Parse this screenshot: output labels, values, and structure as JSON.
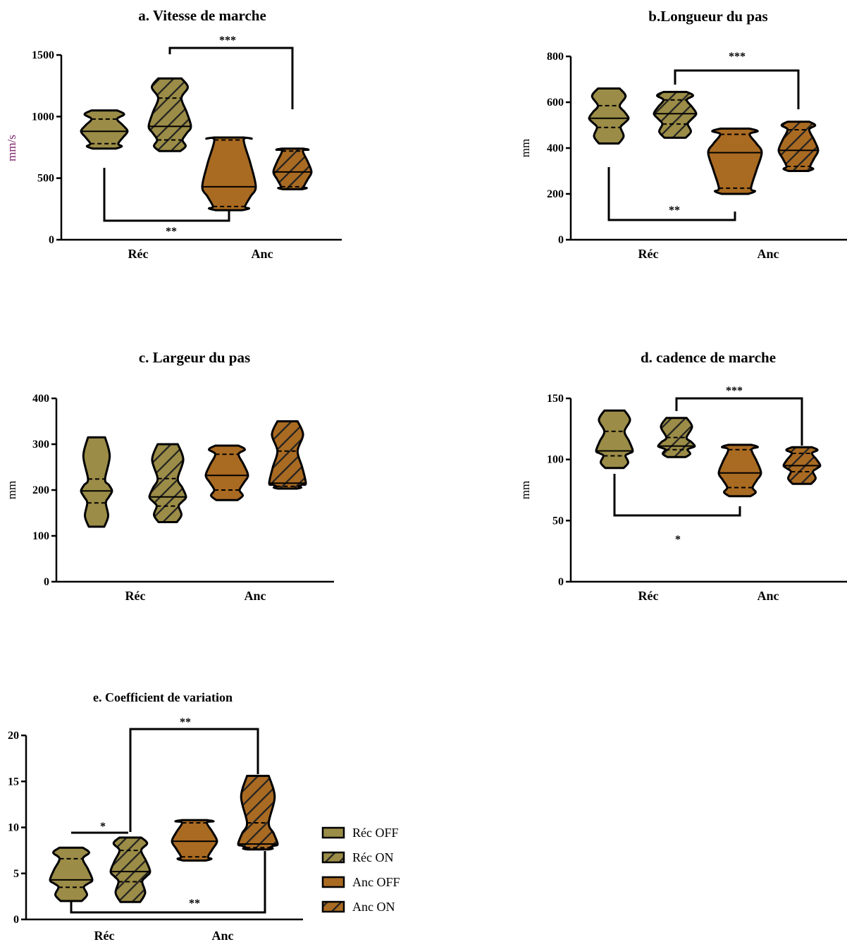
{
  "colors": {
    "rec": "#9B8C47",
    "anc": "#A96A22",
    "stroke": "#000000",
    "ylabel_a": "#7B1F68"
  },
  "legend": [
    {
      "label": "Réc OFF",
      "color": "#9B8C47",
      "hatched": false
    },
    {
      "label": "Réc ON",
      "color": "#9B8C47",
      "hatched": true
    },
    {
      "label": "Anc OFF",
      "color": "#A96A22",
      "hatched": false
    },
    {
      "label": "Anc ON",
      "color": "#A96A22",
      "hatched": true
    }
  ],
  "chart_data": [
    {
      "id": "a",
      "type": "violin",
      "title": "a. Vitesse de marche",
      "ylabel": "mm/s",
      "ylim": [
        0,
        1500
      ],
      "yticks": [
        "0",
        "500",
        "1000",
        "1500"
      ],
      "categories": [
        "Réc",
        "Anc"
      ],
      "series": [
        {
          "name": "Réc OFF",
          "group": "Réc",
          "min": 740,
          "max": 1050,
          "median": 880,
          "q1": 780,
          "q3": 980
        },
        {
          "name": "Réc ON",
          "group": "Réc",
          "min": 720,
          "max": 1310,
          "median": 920,
          "q1": 810,
          "q3": 1150
        },
        {
          "name": "Anc OFF",
          "group": "Anc",
          "min": 240,
          "max": 830,
          "median": 430,
          "q1": 270,
          "q3": 810
        },
        {
          "name": "Anc ON",
          "group": "Anc",
          "min": 410,
          "max": 740,
          "median": 550,
          "q1": 430,
          "q3": 720
        }
      ],
      "significance": [
        "***",
        "**"
      ]
    },
    {
      "id": "b",
      "type": "violin",
      "title": "b.Longueur du pas",
      "ylabel": "mm",
      "ylim": [
        0,
        800
      ],
      "yticks": [
        "0",
        "200",
        "400",
        "600",
        "800"
      ],
      "categories": [
        "Réc",
        "Anc"
      ],
      "series": [
        {
          "name": "Réc OFF",
          "group": "Réc",
          "min": 420,
          "max": 660,
          "median": 530,
          "q1": 490,
          "q3": 585
        },
        {
          "name": "Réc ON",
          "group": "Réc",
          "min": 445,
          "max": 645,
          "median": 550,
          "q1": 505,
          "q3": 610
        },
        {
          "name": "Anc OFF",
          "group": "Anc",
          "min": 200,
          "max": 485,
          "median": 380,
          "q1": 225,
          "q3": 460
        },
        {
          "name": "Anc ON",
          "group": "Anc",
          "min": 300,
          "max": 515,
          "median": 390,
          "q1": 320,
          "q3": 480
        }
      ],
      "significance": [
        "***",
        "**"
      ]
    },
    {
      "id": "c",
      "type": "violin",
      "title": "c. Largeur du pas",
      "ylabel": "mm",
      "ylim": [
        0,
        400
      ],
      "yticks": [
        "0",
        "100",
        "200",
        "300",
        "400"
      ],
      "categories": [
        "Réc",
        "Anc"
      ],
      "series": [
        {
          "name": "Réc OFF",
          "group": "Réc",
          "min": 120,
          "max": 315,
          "median": 198,
          "q1": 172,
          "q3": 224
        },
        {
          "name": "Réc ON",
          "group": "Réc",
          "min": 130,
          "max": 300,
          "median": 185,
          "q1": 165,
          "q3": 225
        },
        {
          "name": "Anc OFF",
          "group": "Anc",
          "min": 178,
          "max": 297,
          "median": 232,
          "q1": 200,
          "q3": 278
        },
        {
          "name": "Anc ON",
          "group": "Anc",
          "min": 203,
          "max": 350,
          "median": 215,
          "q1": 208,
          "q3": 285
        }
      ],
      "significance": []
    },
    {
      "id": "d",
      "type": "violin",
      "title": "d. cadence de marche",
      "ylabel": "mm",
      "ylim": [
        0,
        150
      ],
      "yticks": [
        "0",
        "50",
        "100",
        "150"
      ],
      "categories": [
        "Réc",
        "Anc"
      ],
      "series": [
        {
          "name": "Réc OFF",
          "group": "Réc",
          "min": 93,
          "max": 140,
          "median": 107,
          "q1": 103,
          "q3": 123
        },
        {
          "name": "Réc ON",
          "group": "Réc",
          "min": 102,
          "max": 134,
          "median": 111,
          "q1": 108,
          "q3": 118
        },
        {
          "name": "Anc OFF",
          "group": "Anc",
          "min": 70,
          "max": 112,
          "median": 89,
          "q1": 77,
          "q3": 108
        },
        {
          "name": "Anc ON",
          "group": "Anc",
          "min": 80,
          "max": 110,
          "median": 95,
          "q1": 90,
          "q3": 105
        }
      ],
      "significance": [
        "***",
        "*"
      ]
    },
    {
      "id": "e",
      "type": "violin",
      "title": "e. Coefficient de variation",
      "ylabel": "",
      "ylim": [
        0,
        20
      ],
      "yticks": [
        "0",
        "5",
        "10",
        "15",
        "20"
      ],
      "categories": [
        "Réc",
        "Anc"
      ],
      "series": [
        {
          "name": "Réc OFF",
          "group": "Réc",
          "min": 2,
          "max": 7.8,
          "median": 4.3,
          "q1": 3.5,
          "q3": 6.6
        },
        {
          "name": "Réc ON",
          "group": "Réc",
          "min": 1.9,
          "max": 8.9,
          "median": 5.2,
          "q1": 4.1,
          "q3": 7.5
        },
        {
          "name": "Anc OFF",
          "group": "Anc",
          "min": 6.4,
          "max": 10.8,
          "median": 8.5,
          "q1": 6.8,
          "q3": 10.5
        },
        {
          "name": "Anc ON",
          "group": "Anc",
          "min": 7.6,
          "max": 15.6,
          "median": 8.2,
          "q1": 7.8,
          "q3": 10.5
        }
      ],
      "significance": [
        "**",
        "*",
        "**"
      ]
    }
  ]
}
